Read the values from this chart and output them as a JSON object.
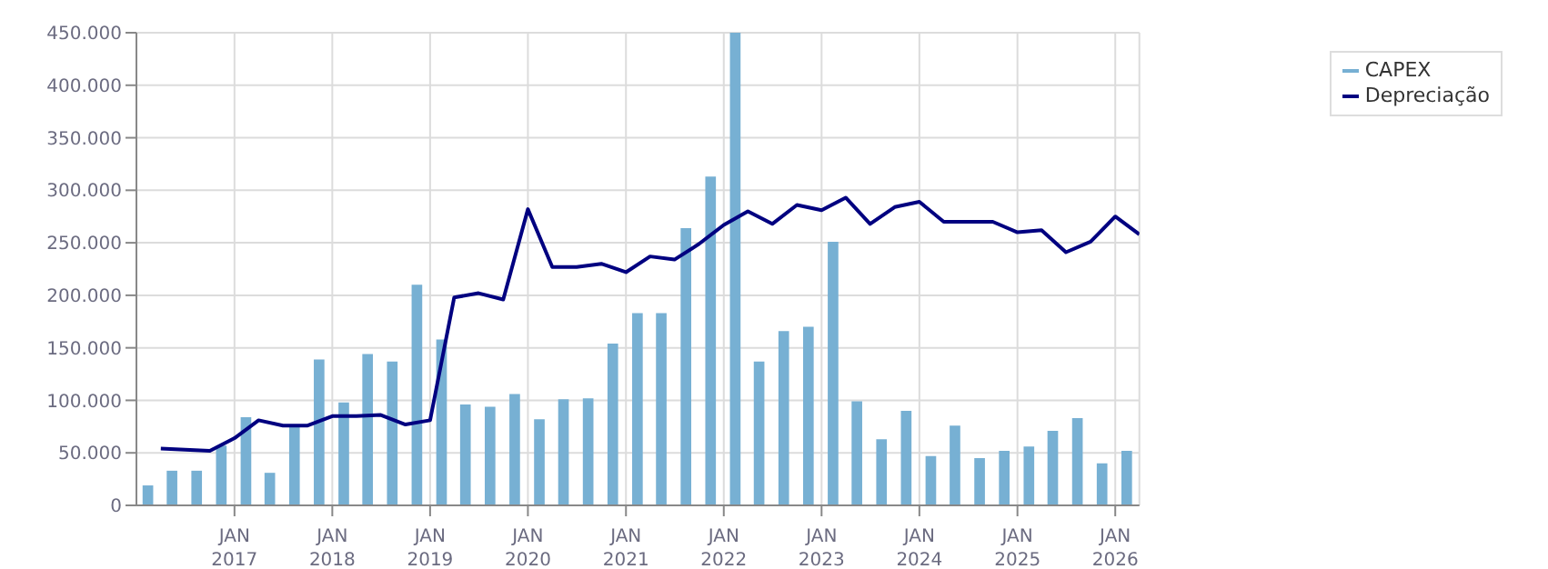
{
  "chart_data": {
    "type": "bar",
    "legend": "top right",
    "grid": true,
    "xlim": [
      "2016-01-01",
      "2026-04-01"
    ],
    "xticks": [
      {
        "value": "2017-01-01",
        "label": "JAN\n2017"
      },
      {
        "value": "2018-01-01",
        "label": "JAN\n2018"
      },
      {
        "value": "2019-01-01",
        "label": "JAN\n2019"
      },
      {
        "value": "2020-01-01",
        "label": "JAN\n2020"
      },
      {
        "value": "2021-01-01",
        "label": "JAN\n2021"
      },
      {
        "value": "2022-01-01",
        "label": "JAN\n2022"
      },
      {
        "value": "2023-01-01",
        "label": "JAN\n2023"
      },
      {
        "value": "2024-01-01",
        "label": "JAN\n2024"
      },
      {
        "value": "2025-01-01",
        "label": "JAN\n2025"
      },
      {
        "value": "2026-01-01",
        "label": "JAN\n2026"
      }
    ],
    "ylim": [
      0,
      450000
    ],
    "yticks": [
      0,
      {
        "value": 50000,
        "label": "50.000"
      },
      {
        "value": 100000,
        "label": "100.000"
      },
      {
        "value": 150000,
        "label": "150.000"
      },
      {
        "value": 200000,
        "label": "200.000"
      },
      {
        "value": 250000,
        "label": "250.000"
      },
      {
        "value": 300000,
        "label": "300.000"
      },
      {
        "value": 350000,
        "label": "350.000"
      },
      {
        "value": 400000,
        "label": "400.000"
      },
      {
        "value": 450000,
        "label": "450.000"
      }
    ],
    "series": [
      {
        "name": "CAPEX",
        "color": "#77b0d3",
        "x": [
          "2016-02-15",
          "2016-05-15",
          "2016-08-15",
          "2016-11-15",
          "2017-02-15",
          "2017-05-15",
          "2017-08-15",
          "2017-11-15",
          "2018-02-15",
          "2018-05-15",
          "2018-08-15",
          "2018-11-15",
          "2019-02-15",
          "2019-05-15",
          "2019-08-15",
          "2019-11-15",
          "2020-02-15",
          "2020-05-15",
          "2020-08-15",
          "2020-11-15",
          "2021-02-15",
          "2021-05-15",
          "2021-08-15",
          "2021-11-15",
          "2022-02-15",
          "2022-05-15",
          "2022-08-15",
          "2022-11-15",
          "2023-02-15",
          "2023-05-15",
          "2023-08-15",
          "2023-11-15",
          "2024-02-15",
          "2024-05-15",
          "2024-08-15",
          "2024-11-15",
          "2025-02-15",
          "2025-05-15",
          "2025-08-15",
          "2025-11-15",
          "2026-02-15"
        ],
        "values": [
          19000,
          33000,
          33000,
          57000,
          84000,
          31000,
          76000,
          139000,
          98000,
          144000,
          137000,
          210000,
          158000,
          96000,
          94000,
          106000,
          82000,
          101000,
          102000,
          154000,
          183000,
          183000,
          264000,
          313000,
          450000,
          137000,
          166000,
          170000,
          251000,
          99000,
          63000,
          90000,
          47000,
          76000,
          45000,
          52000,
          56000,
          71000,
          83000,
          40000,
          52000
        ]
      },
      {
        "name": "Depreciação",
        "type": "line",
        "color": "#000080",
        "x": [
          "2016-04-01",
          "2016-07-01",
          "2016-10-01",
          "2017-01-01",
          "2017-04-01",
          "2017-07-01",
          "2017-10-01",
          "2018-01-01",
          "2018-04-01",
          "2018-07-01",
          "2018-10-01",
          "2019-01-01",
          "2019-04-01",
          "2019-07-01",
          "2019-10-01",
          "2020-01-01",
          "2020-04-01",
          "2020-07-01",
          "2020-10-01",
          "2021-01-01",
          "2021-04-01",
          "2021-07-01",
          "2021-10-01",
          "2022-01-01",
          "2022-04-01",
          "2022-07-01",
          "2022-10-01",
          "2023-01-01",
          "2023-04-01",
          "2023-07-01",
          "2023-10-01",
          "2024-01-01",
          "2024-04-01",
          "2024-07-01",
          "2024-10-01",
          "2025-01-01",
          "2025-04-01",
          "2025-07-01",
          "2025-10-01",
          "2026-01-01",
          "2026-04-01"
        ],
        "values": [
          54000,
          53000,
          52000,
          64000,
          81000,
          76000,
          76000,
          85000,
          85000,
          86000,
          77000,
          81000,
          198000,
          202000,
          196000,
          282000,
          227000,
          227000,
          230000,
          222000,
          237000,
          234000,
          249000,
          267000,
          280000,
          268000,
          286000,
          281000,
          293000,
          268000,
          284000,
          289000,
          270000,
          270000,
          270000,
          260000,
          262000,
          241000,
          251000,
          275000,
          258000
        ]
      }
    ]
  }
}
